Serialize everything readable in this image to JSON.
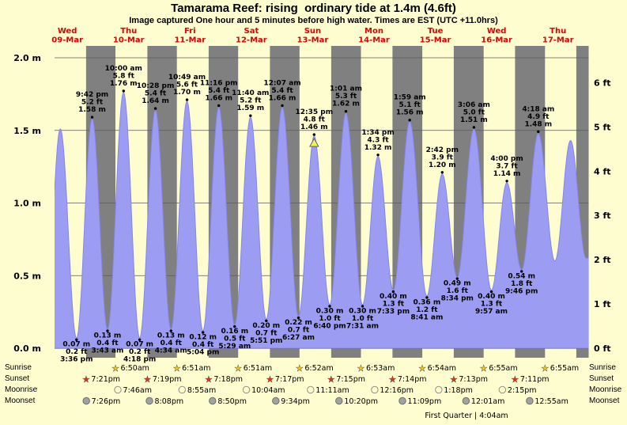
{
  "header": {
    "title": "Tamarama Reef: rising  ordinary tide at 1.4m (4.6ft)",
    "subtitle": "Image captured One hour and 5 minutes before high water. Times are EST (UTC +11.0hrs)"
  },
  "chart_data": {
    "type": "area",
    "t_start": 7,
    "t_end": 216,
    "ylim_m": [
      0,
      2
    ],
    "days": [
      {
        "name": "Wed",
        "date": "09-Mar"
      },
      {
        "name": "Thu",
        "date": "10-Mar"
      },
      {
        "name": "Fri",
        "date": "11-Mar"
      },
      {
        "name": "Sat",
        "date": "12-Mar"
      },
      {
        "name": "Sun",
        "date": "13-Mar"
      },
      {
        "name": "Mon",
        "date": "14-Mar"
      },
      {
        "name": "Tue",
        "date": "15-Mar"
      },
      {
        "name": "Wed",
        "date": "16-Mar"
      },
      {
        "name": "Thu",
        "date": "17-Mar"
      }
    ],
    "y_axis_left": {
      "unit": "m",
      "ticks": [
        [
          "2.0 m",
          2.0
        ],
        [
          "1.5 m",
          1.5
        ],
        [
          "1.0 m",
          1.0
        ],
        [
          "0.5 m",
          0.5
        ],
        [
          "0.0 m",
          0.0
        ]
      ]
    },
    "y_axis_right": {
      "unit": "ft",
      "ticks": [
        [
          "6 ft",
          6
        ],
        [
          "5 ft",
          5
        ],
        [
          "4 ft",
          4
        ],
        [
          "3 ft",
          3
        ],
        [
          "2 ft",
          2
        ],
        [
          "1 ft",
          1
        ],
        [
          "0 ft",
          0
        ]
      ]
    },
    "night_bands": [
      [
        19.35,
        30.833
      ],
      [
        43.317,
        54.85
      ],
      [
        67.3,
        78.85
      ],
      [
        91.283,
        102.867
      ],
      [
        115.25,
        126.883
      ],
      [
        139.233,
        150.9
      ],
      [
        163.217,
        174.917
      ],
      [
        187.183,
        198.917
      ],
      [
        211.167,
        216
      ]
    ],
    "tide_events": [
      {
        "t": 3.2,
        "h": 0.1,
        "type": "low"
      },
      {
        "t": 9.25,
        "h": 1.51,
        "type": "high"
      },
      {
        "t": 15.6,
        "h": 0.07,
        "type": "low",
        "labels": [
          "0.07 m",
          "0.2 ft",
          "3:36 pm"
        ]
      },
      {
        "t": 21.7,
        "h": 1.58,
        "type": "high",
        "labels": [
          "9:42 pm",
          "5.2 ft",
          "1.58 m"
        ]
      },
      {
        "t": 27.717,
        "h": 0.13,
        "type": "low",
        "labels": [
          "0.13 m",
          "0.4 ft",
          "3:43 am"
        ]
      },
      {
        "t": 34.0,
        "h": 1.76,
        "type": "high",
        "labels": [
          "10:00 am",
          "5.8 ft",
          "1.76 m"
        ]
      },
      {
        "t": 40.3,
        "h": 0.07,
        "type": "low",
        "labels": [
          "0.07 m",
          "0.2 ft",
          "4:18 pm"
        ]
      },
      {
        "t": 46.467,
        "h": 1.64,
        "type": "high",
        "labels": [
          "10:28 pm",
          "5.4 ft",
          "1.64 m"
        ]
      },
      {
        "t": 52.567,
        "h": 0.13,
        "type": "low",
        "labels": [
          "0.13 m",
          "0.4 ft",
          "4:34 am"
        ]
      },
      {
        "t": 58.817,
        "h": 1.7,
        "type": "high",
        "labels": [
          "10:49 am",
          "5.6 ft",
          "1.70 m"
        ]
      },
      {
        "t": 65.067,
        "h": 0.12,
        "type": "low",
        "labels": [
          "0.12 m",
          "0.4 ft",
          "5:04 pm"
        ]
      },
      {
        "t": 71.267,
        "h": 1.66,
        "type": "high",
        "labels": [
          "11:16 pm",
          "5.4 ft",
          "1.66 m"
        ]
      },
      {
        "t": 77.483,
        "h": 0.16,
        "type": "low",
        "labels": [
          "0.16 m",
          "0.5 ft",
          "5:29 am"
        ]
      },
      {
        "t": 83.667,
        "h": 1.59,
        "type": "high",
        "labels": [
          "11:40 am",
          "5.2 ft",
          "1.59 m"
        ]
      },
      {
        "t": 89.85,
        "h": 0.2,
        "type": "low",
        "labels": [
          "0.20 m",
          "0.7 ft",
          "5:51 pm"
        ]
      },
      {
        "t": 96.117,
        "h": 1.66,
        "type": "high",
        "labels": [
          "12:07 am",
          "5.4 ft",
          "1.66 m"
        ]
      },
      {
        "t": 102.45,
        "h": 0.22,
        "type": "low",
        "labels": [
          "0.22 m",
          "0.7 ft",
          "6:27 am"
        ]
      },
      {
        "t": 108.583,
        "h": 1.46,
        "type": "high",
        "labels": [
          "12:35 pm",
          "4.8 ft",
          "1.46 m"
        ],
        "marker": "current-time"
      },
      {
        "t": 114.667,
        "h": 0.3,
        "type": "low",
        "labels": [
          "0.30 m",
          "1.0 ft",
          "6:40 pm"
        ]
      },
      {
        "t": 121.017,
        "h": 1.62,
        "type": "high",
        "labels": [
          "1:01 am",
          "5.3 ft",
          "1.62 m"
        ]
      },
      {
        "t": 127.517,
        "h": 0.3,
        "type": "low",
        "labels": [
          "0.30 m",
          "1.0 ft",
          "7:31 am"
        ]
      },
      {
        "t": 133.567,
        "h": 1.32,
        "type": "high",
        "labels": [
          "1:34 pm",
          "4.3 ft",
          "1.32 m"
        ]
      },
      {
        "t": 139.55,
        "h": 0.4,
        "type": "low",
        "labels": [
          "0.40 m",
          "1.3 ft",
          "7:33 pm"
        ]
      },
      {
        "t": 145.983,
        "h": 1.56,
        "type": "high",
        "labels": [
          "1:59 am",
          "5.1 ft",
          "1.56 m"
        ]
      },
      {
        "t": 152.683,
        "h": 0.36,
        "type": "low",
        "labels": [
          "0.36 m",
          "1.2 ft",
          "8:41 am"
        ]
      },
      {
        "t": 158.7,
        "h": 1.2,
        "type": "high",
        "labels": [
          "2:42 pm",
          "3.9 ft",
          "1.20 m"
        ]
      },
      {
        "t": 164.567,
        "h": 0.49,
        "type": "low",
        "labels": [
          "0.49 m",
          "1.6 ft",
          "8:34 pm"
        ]
      },
      {
        "t": 171.1,
        "h": 1.51,
        "type": "high",
        "labels": [
          "3:06 am",
          "5.0 ft",
          "1.51 m"
        ]
      },
      {
        "t": 177.95,
        "h": 0.4,
        "type": "low",
        "labels": [
          "0.40 m",
          "1.3 ft",
          "9:57 am"
        ]
      },
      {
        "t": 184.0,
        "h": 1.14,
        "type": "high",
        "labels": [
          "4:00 pm",
          "3.7 ft",
          "1.14 m"
        ]
      },
      {
        "t": 189.767,
        "h": 0.54,
        "type": "low",
        "labels": [
          "0.54 m",
          "1.8 ft",
          "9:46 pm"
        ]
      },
      {
        "t": 196.3,
        "h": 1.48,
        "type": "high",
        "labels": [
          "4:18 am",
          "4.9 ft",
          "1.48 m"
        ]
      },
      {
        "t": 202.783,
        "h": 0.6,
        "type": "low"
      },
      {
        "t": 208.917,
        "h": 1.43,
        "type": "high"
      },
      {
        "t": 215.0,
        "h": 0.62,
        "type": "low"
      }
    ],
    "colors": {
      "background": "#fdfdd0",
      "night_band": "#808080",
      "tide_fill": "#9c9cf2",
      "tide_stroke": "#8686ea",
      "day_label": "#e00000",
      "grid_line": "#5a5a5a",
      "sunrise_star": "#f2c41d",
      "sunset_star": "#e0340e",
      "moonrise_fill": "#ffffcc",
      "moonrise_stroke": "#8f8f8f",
      "moonset_fill": "#a2a2a2",
      "moonset_stroke": "#6e6e6e",
      "marker_triangle": "#f0f060"
    },
    "icons": {
      "sunrise": "sun-star-icon",
      "sunset": "sun-star-icon",
      "moonrise": "moon-circle-icon",
      "moonset": "moon-circle-icon",
      "current_time": "triangle-marker-icon"
    }
  },
  "astro": {
    "row_labels": [
      "Sunrise",
      "Sunset",
      "Moonrise",
      "Moonset"
    ],
    "sunrise": [
      [
        30.833,
        "6:50am"
      ],
      [
        54.85,
        "6:51am"
      ],
      [
        78.85,
        "6:51am"
      ],
      [
        102.867,
        "6:52am"
      ],
      [
        126.883,
        "6:53am"
      ],
      [
        150.9,
        "6:54am"
      ],
      [
        174.917,
        "6:55am"
      ],
      [
        198.917,
        "6:55am"
      ]
    ],
    "sunset": [
      [
        19.35,
        "7:21pm"
      ],
      [
        43.317,
        "7:19pm"
      ],
      [
        67.3,
        "7:18pm"
      ],
      [
        91.283,
        "7:17pm"
      ],
      [
        115.25,
        "7:15pm"
      ],
      [
        139.233,
        "7:14pm"
      ],
      [
        163.217,
        "7:13pm"
      ],
      [
        187.183,
        "7:11pm"
      ]
    ],
    "moonrise": [
      [
        31.767,
        "7:46am"
      ],
      [
        56.917,
        "8:55am"
      ],
      [
        82.067,
        "10:04am"
      ],
      [
        107.183,
        "11:11am"
      ],
      [
        132.267,
        "12:16pm"
      ],
      [
        157.3,
        "1:18pm"
      ],
      [
        182.25,
        "2:15pm"
      ]
    ],
    "moonset": [
      [
        19.433,
        "7:26pm"
      ],
      [
        44.133,
        "8:08pm"
      ],
      [
        68.833,
        "8:50pm"
      ],
      [
        93.567,
        "9:34pm"
      ],
      [
        118.333,
        "10:20pm"
      ],
      [
        143.15,
        "11:09pm"
      ],
      [
        168.017,
        "12:01am"
      ],
      [
        192.917,
        "12:55am"
      ]
    ],
    "moon_phase": "First Quarter | 4:04am"
  }
}
